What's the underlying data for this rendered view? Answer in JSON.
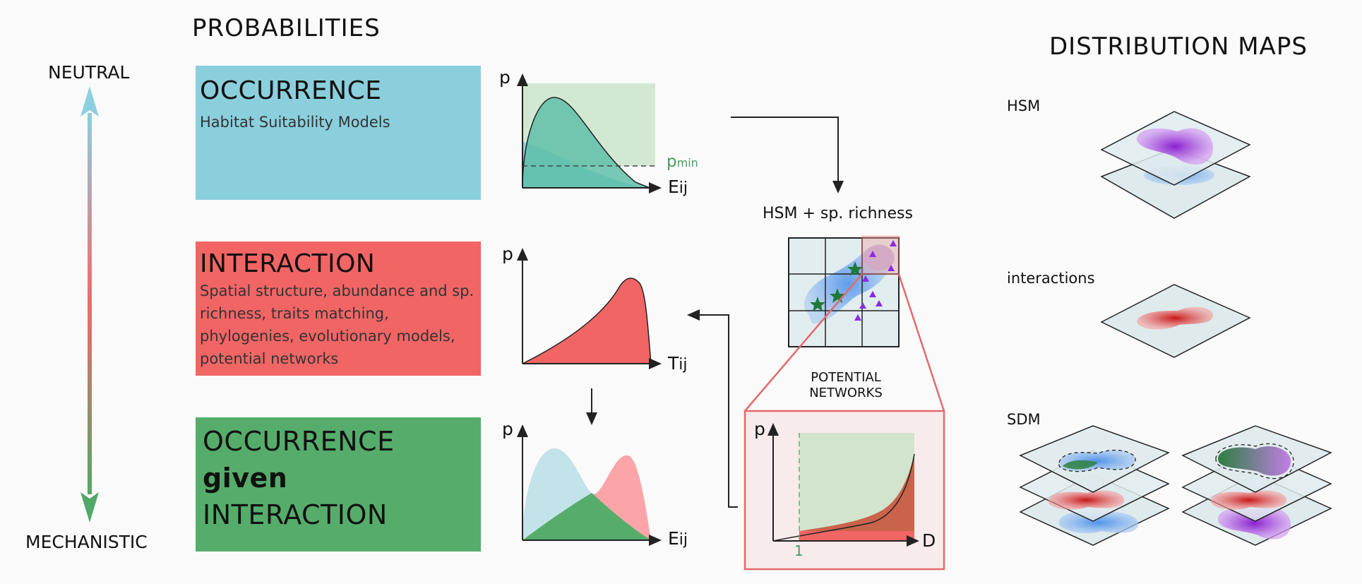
{
  "left_axis": {
    "top_label": "NEUTRAL",
    "bottom_label": "MECHANISTIC"
  },
  "section_title": "PROBABILITIES",
  "maps_title": "DISTRIBUTION MAPS",
  "boxes": {
    "occurrence": {
      "title": "OCCURRENCE",
      "desc": "Habitat Suitability Models"
    },
    "interaction": {
      "title": "INTERACTION",
      "desc": "Spatial structure, abundance and sp. richness, traits matching, phylogenies, evolutionary models, potential networks"
    },
    "conditional": {
      "line1": "OCCURRENCE",
      "line2": "given",
      "line3": "INTERACTION"
    }
  },
  "plots": {
    "p1": {
      "y": "p",
      "x": "E",
      "x_sub": "ij",
      "threshold": "p",
      "threshold_sub": "min"
    },
    "p2": {
      "y": "p",
      "x": "T",
      "x_sub": "ij"
    },
    "p3": {
      "y": "p",
      "x": "E",
      "x_sub": "ij"
    },
    "p4": {
      "y": "p",
      "x": "D",
      "tick": "1"
    }
  },
  "grid_title": "HSM +  sp. richness",
  "potential_networks": {
    "line1": "POTENTIAL",
    "line2": "NETWORKS"
  },
  "maps": {
    "hsm": "HSM",
    "interactions": "interactions",
    "sdm": "SDM"
  },
  "colors": {
    "occurrence": "#8bcfdd",
    "interaction": "#f26565",
    "conditional": "#56ad6b",
    "hsm_blob": "#b44fd8",
    "interaction_blob": "#d42a2a",
    "blue_blob": "#5a9ae8"
  }
}
